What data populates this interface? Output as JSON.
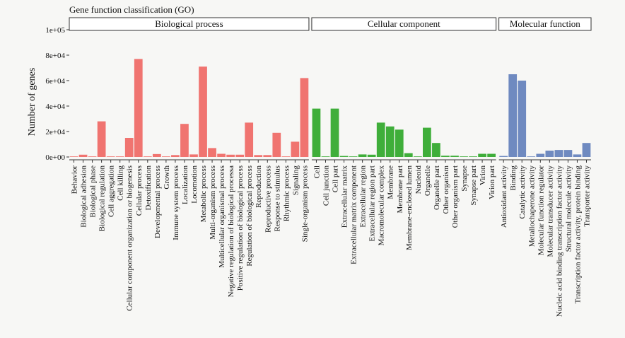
{
  "chart_data": {
    "type": "bar",
    "title": "Gene function classification (GO)",
    "xlabel": "",
    "ylabel": "Number of genes",
    "ylim": [
      0,
      100000
    ],
    "yticks": [
      0,
      20000,
      40000,
      60000,
      80000,
      100000
    ],
    "ytick_labels": [
      "0e+00",
      "2e+04",
      "4e+04",
      "6e+04",
      "8e+04",
      "1e+05"
    ],
    "facets": [
      {
        "name": "Biological process",
        "color": "#f07470",
        "categories": [
          "Behavior",
          "Biological adhesion",
          "Biological phase",
          "Biological regulation",
          "Cell aggregation",
          "Cell killing",
          "Cellular component organization or biogenesis",
          "Cellular process",
          "Detoxification",
          "Developmental process",
          "Growth",
          "Immune system process",
          "Localization",
          "Locomotion",
          "Metabolic process",
          "Multi-organism process",
          "Multicellular organismal process",
          "Negative regulation of biological processa",
          "Positive regulation of biological process",
          "Regulation of biological process",
          "Reproduction",
          "Reproductive process",
          "Response to stimulus",
          "Rhythmic process",
          "Signaling",
          "Single-organism process"
        ],
        "values": [
          150,
          1800,
          100,
          28000,
          100,
          200,
          15000,
          77000,
          100,
          2300,
          100,
          1500,
          26000,
          2000,
          71000,
          7000,
          2500,
          1800,
          1800,
          27000,
          1500,
          1500,
          19000,
          150,
          12000,
          62000
        ]
      },
      {
        "name": "Cellular component",
        "color": "#3fae3a",
        "categories": [
          "Cell",
          "Cell junction",
          "Cell part",
          "Extracellular matrix",
          "Extracellular matrix component",
          "Extracellular region",
          "Extracellular region part",
          "Macromolecular complex",
          "Membrane",
          "Membrane part",
          "Membrane-enclosed lumen",
          "Nucleoid",
          "Organelle",
          "Organelle part",
          "Other organism",
          "Other organism part",
          "Synapse",
          "Synapse part",
          "Virion",
          "Virion part"
        ],
        "values": [
          38000,
          100,
          38000,
          800,
          100,
          2000,
          1800,
          27000,
          24000,
          21500,
          3000,
          150,
          23000,
          11000,
          1000,
          1000,
          200,
          200,
          2500,
          2500
        ]
      },
      {
        "name": "Molecular function",
        "color": "#6f8ac0",
        "categories": [
          "Antioxidant activity",
          "Binding",
          "Catalytic activity",
          "Metallochaperone activity",
          "Molecular function regulator",
          "Molecular transducer activity",
          "Nucleic acid binding transcription factor activity",
          "Structural molecule activity",
          "Transcription factor activity, protein binding",
          "Transporter activity"
        ],
        "values": [
          800,
          65000,
          60000,
          150,
          2500,
          5000,
          5500,
          5500,
          2000,
          11000
        ]
      }
    ]
  }
}
